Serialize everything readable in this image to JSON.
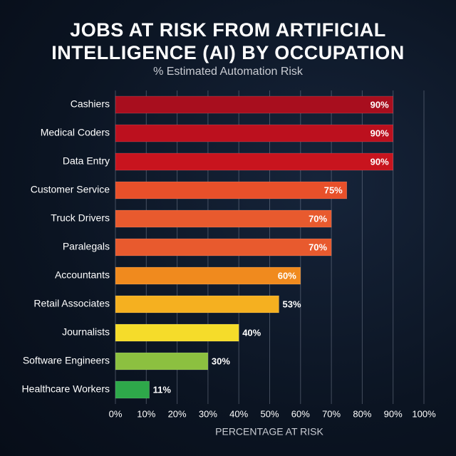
{
  "chart_data": {
    "type": "hbar",
    "title": "JOBS AT RISK FROM ARTIFICIAL INTELLIGENCE (AI) BY OCCUPATION",
    "subtitle": "% Estimated Automation Risk",
    "x_label": "PERCENTAGE AT RISK",
    "categories": [
      "Cashiers",
      "Medical Coders",
      "Data Entry",
      "Customer Service",
      "Truck Drivers",
      "Paralegals",
      "Accountants",
      "Retail Associates",
      "Journalists",
      "Software Engineers",
      "Healthcare Workers"
    ],
    "values": [
      90,
      90,
      90,
      75,
      70,
      70,
      60,
      53,
      40,
      30,
      11
    ],
    "value_labels": [
      "90%",
      "90%",
      "90%",
      "75%",
      "70%",
      "70%",
      "60%",
      "53%",
      "40%",
      "30%",
      "11%"
    ],
    "colors": [
      "#a80e1e",
      "#bc101e",
      "#c8141e",
      "#e8502a",
      "#e85a2e",
      "#e85a2e",
      "#f08a1e",
      "#f5b020",
      "#f5dc2a",
      "#8cc040",
      "#2ea84a"
    ],
    "xlim": [
      0,
      100
    ],
    "xticks": [
      {
        "value": 0,
        "label": "0%"
      },
      {
        "value": 10,
        "label": "10%"
      },
      {
        "value": 20,
        "label": "20%"
      },
      {
        "value": 30,
        "label": "30%"
      },
      {
        "value": 40,
        "label": "40%"
      },
      {
        "value": 50,
        "label": "50%"
      },
      {
        "value": 60,
        "label": "60%"
      },
      {
        "value": 70,
        "label": "70%"
      },
      {
        "value": 80,
        "label": "80%"
      },
      {
        "value": 90,
        "label": "90%"
      },
      {
        "value": 100,
        "label": "100%"
      }
    ],
    "grid": true
  }
}
